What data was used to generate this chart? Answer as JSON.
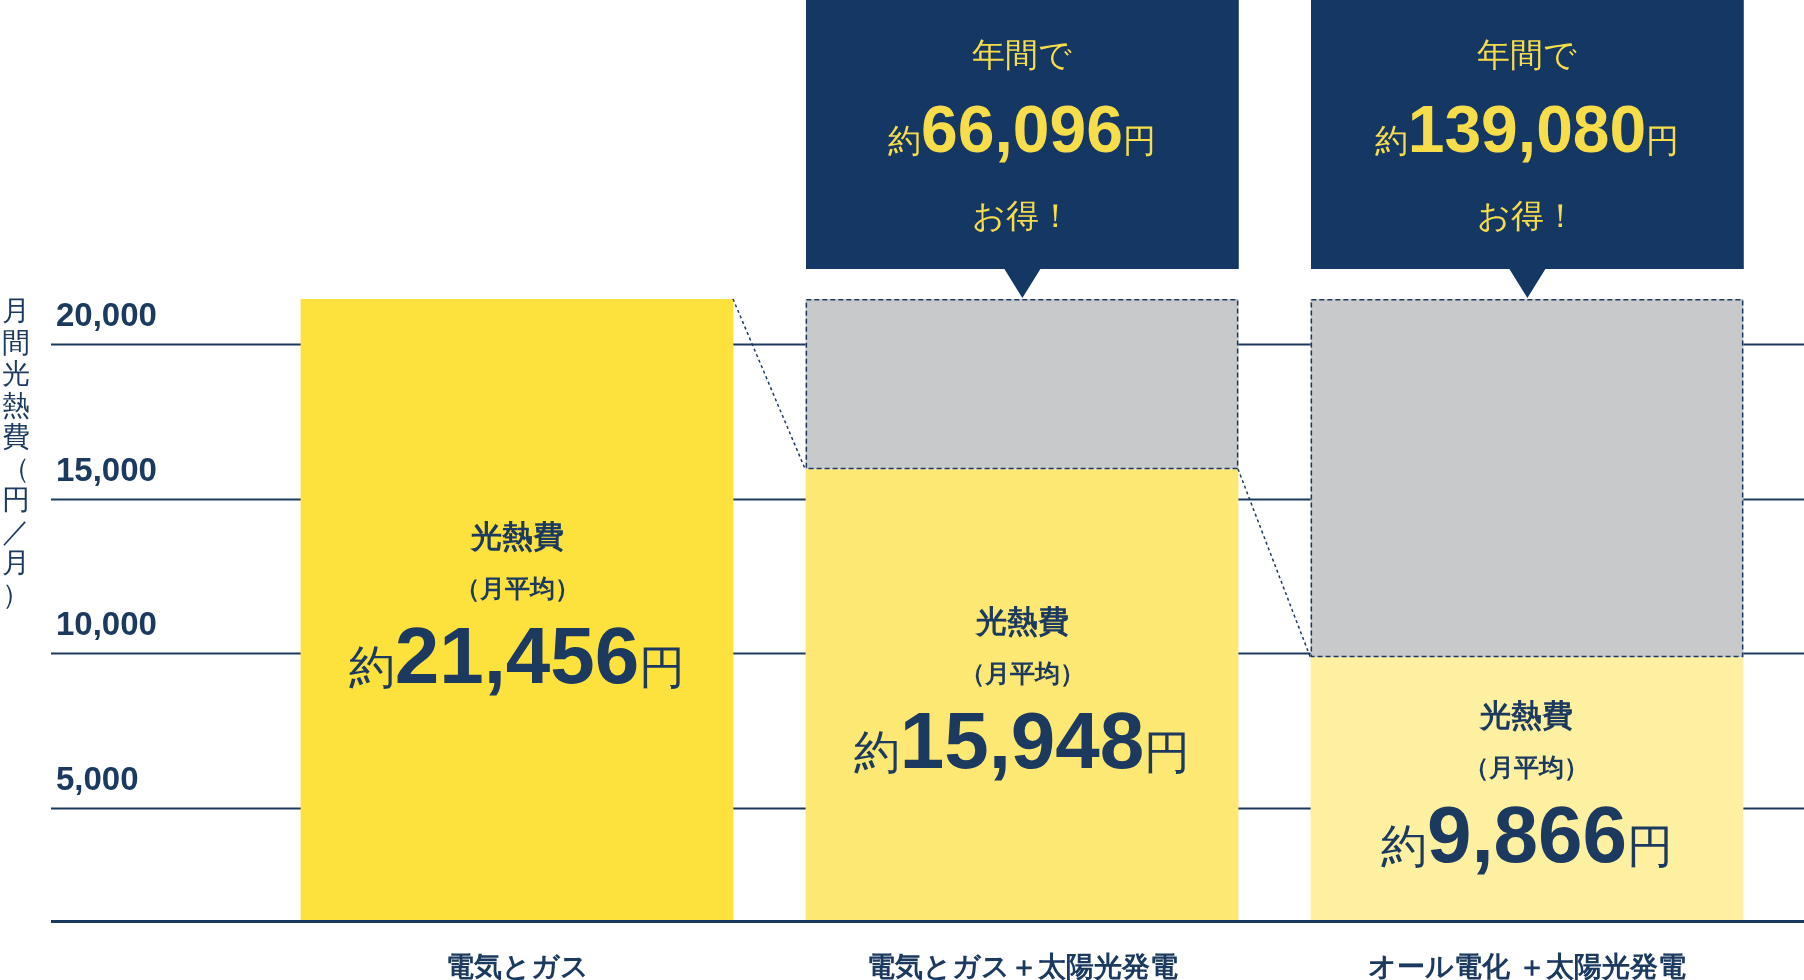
{
  "chart_data": {
    "type": "bar",
    "ylabel": "月間光熱費（円／月）",
    "categories": [
      "電気とガス",
      "電気とガス＋太陽光発電",
      "オール電化 ＋太陽光発電"
    ],
    "stacked": true,
    "series": [
      {
        "colors": [
          "#fde13d",
          "#fde873",
          "#fef0a1"
        ],
        "values": [
          21456,
          15948,
          9866
        ],
        "value_labels": [
          "光熱費（月平均）約21,456円",
          "光熱費（月平均）約15,948円",
          "光熱費（月平均）約9,866円"
        ]
      },
      {
        "color": "#c8c9cb",
        "line_style": "dashed",
        "values": [
          null,
          5508,
          11590
        ]
      }
    ],
    "ylim": [
      1360,
      21456
    ],
    "yticks": [
      {
        "value": 5000,
        "label": "5,000"
      },
      {
        "value": 10000,
        "label": "10,000"
      },
      {
        "value": 15000,
        "label": "15,000"
      },
      {
        "value": 20000,
        "label": "20,000"
      }
    ],
    "grid": "y",
    "annotations": [
      "年間で約66,096円お得！",
      "年間で約139,080円お得！"
    ]
  }
}
